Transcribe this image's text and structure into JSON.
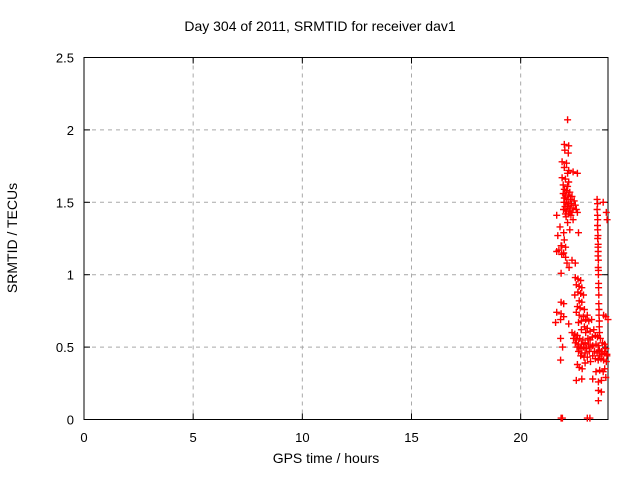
{
  "colors": {
    "background": "#ffffff",
    "axis": "#000000",
    "grid": "#a9a9a9",
    "marker": "#ff0000",
    "text": "#000000"
  },
  "chart_data": {
    "type": "scatter",
    "title": "Day 304 of 2011, SRMTID for receiver dav1",
    "xlabel": "GPS time / hours",
    "ylabel": "SRMTID / TECUs",
    "xlim": [
      0,
      24
    ],
    "ylim": [
      0,
      2.5
    ],
    "grid": "dashed, both axes",
    "legend": "none",
    "marker": {
      "shape": "plus",
      "color": "#ff0000",
      "size": 7
    },
    "x_ticks": {
      "values": [
        0,
        5,
        10,
        15,
        20
      ],
      "labels": [
        "0",
        "5",
        "10",
        "15",
        "20"
      ]
    },
    "y_ticks": {
      "values": [
        0,
        0.5,
        1,
        1.5,
        2,
        2.5
      ],
      "labels": [
        "0",
        "0.5",
        "1",
        "1.5",
        "2",
        "2.5"
      ]
    },
    "series": [
      {
        "name": "SRMTID",
        "points": [
          [
            22.15,
            2.07
          ],
          [
            22.0,
            1.9
          ],
          [
            22.2,
            1.89
          ],
          [
            22.02,
            1.86
          ],
          [
            22.18,
            1.84
          ],
          [
            21.9,
            1.78
          ],
          [
            22.1,
            1.77
          ],
          [
            22.0,
            1.74
          ],
          [
            22.2,
            1.72
          ],
          [
            22.4,
            1.71
          ],
          [
            22.6,
            1.7
          ],
          [
            22.15,
            1.7
          ],
          [
            21.9,
            1.67
          ],
          [
            22.05,
            1.66
          ],
          [
            22.2,
            1.64
          ],
          [
            21.95,
            1.62
          ],
          [
            22.15,
            1.61
          ],
          [
            22.0,
            1.59
          ],
          [
            22.1,
            1.58
          ],
          [
            22.25,
            1.57
          ],
          [
            21.95,
            1.56
          ],
          [
            22.05,
            1.55
          ],
          [
            22.18,
            1.55
          ],
          [
            22.35,
            1.54
          ],
          [
            22.0,
            1.53
          ],
          [
            22.12,
            1.52
          ],
          [
            22.28,
            1.52
          ],
          [
            22.45,
            1.51
          ],
          [
            21.98,
            1.5
          ],
          [
            22.08,
            1.5
          ],
          [
            22.2,
            1.49
          ],
          [
            22.32,
            1.49
          ],
          [
            22.5,
            1.48
          ],
          [
            22.03,
            1.47
          ],
          [
            22.15,
            1.47
          ],
          [
            22.27,
            1.46
          ],
          [
            22.4,
            1.46
          ],
          [
            21.96,
            1.45
          ],
          [
            22.55,
            1.45
          ],
          [
            22.1,
            1.44
          ],
          [
            22.22,
            1.44
          ],
          [
            22.35,
            1.43
          ],
          [
            22.6,
            1.43
          ],
          [
            22.05,
            1.42
          ],
          [
            22.18,
            1.42
          ],
          [
            22.3,
            1.41
          ],
          [
            22.08,
            1.4
          ],
          [
            21.65,
            1.41
          ],
          [
            21.8,
            1.33
          ],
          [
            21.7,
            1.27
          ],
          [
            21.85,
            1.2
          ],
          [
            21.75,
            1.17
          ],
          [
            21.97,
            1.29
          ],
          [
            21.88,
            1.2
          ],
          [
            22.06,
            1.19
          ],
          [
            21.88,
            1.14
          ],
          [
            22.06,
            1.12
          ],
          [
            22.4,
            1.38
          ],
          [
            22.65,
            1.29
          ],
          [
            22.15,
            1.36
          ],
          [
            22.25,
            1.31
          ],
          [
            22.0,
            1.24
          ],
          [
            22.5,
            1.08
          ],
          [
            21.65,
            1.16
          ],
          [
            21.97,
            1.15
          ],
          [
            22.35,
            1.1
          ],
          [
            21.85,
            1.01
          ],
          [
            22.12,
            1.08
          ],
          [
            22.22,
            1.05
          ],
          [
            22.5,
            0.98
          ],
          [
            22.62,
            0.97
          ],
          [
            22.75,
            0.96
          ],
          [
            22.55,
            0.93
          ],
          [
            22.68,
            0.92
          ],
          [
            22.8,
            0.91
          ],
          [
            22.62,
            0.88
          ],
          [
            22.75,
            0.87
          ],
          [
            22.48,
            0.86
          ],
          [
            22.88,
            0.86
          ],
          [
            22.68,
            0.82
          ],
          [
            22.8,
            0.81
          ],
          [
            22.6,
            0.78
          ],
          [
            22.72,
            0.77
          ],
          [
            22.92,
            0.76
          ],
          [
            22.55,
            0.74
          ],
          [
            22.68,
            0.72
          ],
          [
            22.88,
            0.71
          ],
          [
            23.05,
            0.72
          ],
          [
            22.98,
            0.69
          ],
          [
            22.78,
            0.68
          ],
          [
            22.65,
            0.67
          ],
          [
            23.12,
            0.68
          ],
          [
            23.25,
            0.69
          ],
          [
            22.92,
            0.64
          ],
          [
            23.05,
            0.63
          ],
          [
            23.18,
            0.61
          ],
          [
            23.35,
            0.62
          ],
          [
            22.78,
            0.62
          ],
          [
            22.98,
            0.6
          ],
          [
            21.85,
            0.81
          ],
          [
            21.97,
            0.8
          ],
          [
            21.65,
            0.74
          ],
          [
            21.85,
            0.73
          ],
          [
            21.6,
            0.67
          ],
          [
            22.2,
            0.66
          ],
          [
            21.83,
            0.69
          ],
          [
            21.97,
            0.71
          ],
          [
            21.83,
            0.56
          ],
          [
            21.92,
            0.5
          ],
          [
            21.83,
            0.41
          ],
          [
            23.28,
            0.57
          ],
          [
            23.42,
            0.58
          ],
          [
            23.08,
            0.56
          ],
          [
            23.18,
            0.55
          ],
          [
            23.52,
            0.57
          ],
          [
            23.65,
            0.56
          ],
          [
            23.45,
            0.52
          ],
          [
            23.55,
            0.51
          ],
          [
            23.3,
            0.51
          ],
          [
            23.75,
            0.53
          ],
          [
            23.85,
            0.52
          ],
          [
            23.6,
            0.48
          ],
          [
            23.7,
            0.47
          ],
          [
            23.9,
            0.49
          ],
          [
            23.95,
            0.45
          ],
          [
            22.35,
            0.6
          ],
          [
            22.48,
            0.59
          ],
          [
            22.6,
            0.58
          ],
          [
            22.42,
            0.56
          ],
          [
            22.55,
            0.55
          ],
          [
            22.7,
            0.56
          ],
          [
            22.85,
            0.55
          ],
          [
            22.5,
            0.53
          ],
          [
            22.65,
            0.52
          ],
          [
            22.78,
            0.52
          ],
          [
            22.95,
            0.53
          ],
          [
            23.1,
            0.52
          ],
          [
            22.58,
            0.5
          ],
          [
            22.72,
            0.49
          ],
          [
            22.88,
            0.5
          ],
          [
            23.02,
            0.49
          ],
          [
            23.22,
            0.5
          ],
          [
            22.65,
            0.47
          ],
          [
            22.8,
            0.46
          ],
          [
            22.95,
            0.46
          ],
          [
            23.15,
            0.47
          ],
          [
            23.38,
            0.47
          ],
          [
            23.5,
            0.46
          ],
          [
            22.75,
            0.44
          ],
          [
            22.9,
            0.43
          ],
          [
            23.05,
            0.43
          ],
          [
            23.3,
            0.44
          ],
          [
            23.6,
            0.44
          ],
          [
            23.72,
            0.45
          ],
          [
            23.85,
            0.46
          ],
          [
            23.95,
            0.44
          ],
          [
            23.42,
            0.42
          ],
          [
            23.55,
            0.41
          ],
          [
            23.68,
            0.42
          ],
          [
            23.8,
            0.41
          ],
          [
            23.92,
            0.4
          ],
          [
            22.6,
            0.38
          ],
          [
            22.95,
            0.39
          ],
          [
            23.2,
            0.4
          ],
          [
            23.45,
            0.33
          ],
          [
            23.62,
            0.34
          ],
          [
            23.78,
            0.33
          ],
          [
            23.85,
            0.35
          ],
          [
            22.68,
            0.36
          ],
          [
            22.82,
            0.35
          ],
          [
            22.55,
            0.27
          ],
          [
            22.8,
            0.28
          ],
          [
            23.3,
            0.28
          ],
          [
            23.56,
            0.26
          ],
          [
            23.7,
            0.27
          ],
          [
            23.9,
            0.29
          ],
          [
            23.56,
            0.2
          ],
          [
            23.7,
            0.19
          ],
          [
            23.56,
            0.13
          ],
          [
            23.5,
            1.52
          ],
          [
            23.52,
            1.49
          ],
          [
            23.5,
            1.45
          ],
          [
            23.52,
            1.41
          ],
          [
            23.53,
            1.38
          ],
          [
            23.52,
            1.34
          ],
          [
            23.53,
            1.31
          ],
          [
            23.54,
            1.27
          ],
          [
            23.53,
            1.25
          ],
          [
            23.55,
            1.21
          ],
          [
            23.54,
            1.19
          ],
          [
            23.55,
            1.16
          ],
          [
            23.54,
            1.13
          ],
          [
            23.56,
            1.1
          ],
          [
            23.55,
            1.05
          ],
          [
            23.56,
            1.03
          ],
          [
            23.56,
            1.0
          ],
          [
            23.57,
            0.94
          ],
          [
            23.57,
            0.91
          ],
          [
            23.58,
            0.86
          ],
          [
            23.58,
            0.8
          ],
          [
            23.59,
            0.76
          ],
          [
            23.59,
            0.72
          ],
          [
            23.6,
            0.68
          ],
          [
            23.6,
            0.64
          ],
          [
            23.61,
            0.6
          ],
          [
            23.78,
            1.5
          ],
          [
            23.92,
            1.43
          ],
          [
            23.96,
            1.38
          ],
          [
            23.8,
            0.72
          ],
          [
            23.9,
            0.71
          ],
          [
            24.0,
            0.69
          ],
          [
            21.85,
            0.01
          ],
          [
            21.87,
            0.01
          ],
          [
            21.89,
            0.01
          ],
          [
            21.91,
            0.01
          ],
          [
            23.05,
            0.01
          ],
          [
            23.17,
            0.01
          ]
        ]
      }
    ]
  }
}
